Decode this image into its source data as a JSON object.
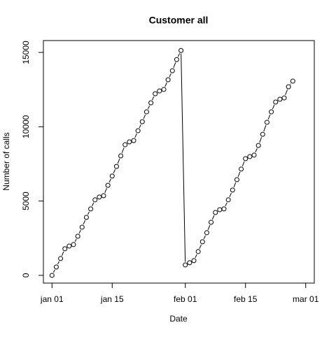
{
  "chart_data": {
    "type": "line",
    "title": "Customer all",
    "xlabel": "Date",
    "ylabel": "Number of calls",
    "x": [
      "jan 01",
      "jan 02",
      "jan 03",
      "jan 04",
      "jan 05",
      "jan 06",
      "jan 07",
      "jan 08",
      "jan 09",
      "jan 10",
      "jan 11",
      "jan 12",
      "jan 13",
      "jan 14",
      "jan 15",
      "jan 16",
      "jan 17",
      "jan 18",
      "jan 19",
      "jan 20",
      "jan 21",
      "jan 22",
      "jan 23",
      "jan 24",
      "jan 25",
      "jan 26",
      "jan 27",
      "jan 28",
      "jan 29",
      "jan 30",
      "jan 31",
      "feb 01",
      "feb 02",
      "feb 03",
      "feb 04",
      "feb 05",
      "feb 06",
      "feb 07",
      "feb 08",
      "feb 09",
      "feb 10",
      "feb 11",
      "feb 12",
      "feb 13",
      "feb 14",
      "feb 15",
      "feb 16",
      "feb 17",
      "feb 18",
      "feb 19",
      "feb 20",
      "feb 21",
      "feb 22",
      "feb 23",
      "feb 24",
      "feb 25",
      "feb 26"
    ],
    "values": [
      0,
      560,
      1130,
      1790,
      1970,
      2070,
      2630,
      3240,
      3900,
      4470,
      5080,
      5270,
      5360,
      6060,
      6680,
      7330,
      8040,
      8790,
      8980,
      9070,
      9730,
      10340,
      11000,
      11610,
      12220,
      12410,
      12510,
      13160,
      13770,
      14520,
      15130,
      700,
      850,
      990,
      1600,
      2260,
      2870,
      3570,
      4230,
      4420,
      4470,
      5080,
      5740,
      6440,
      7150,
      7850,
      7990,
      8090,
      8740,
      9490,
      10300,
      11000,
      11660,
      11850,
      11940,
      12690,
      13070
    ],
    "color": "#000000",
    "xlim": [
      "dec 30",
      "mar 03"
    ],
    "xticks": [
      "jan 01",
      "jan 15",
      "feb 01",
      "feb 15",
      "mar 01"
    ],
    "ylim": [
      -520,
      15800
    ],
    "yticks": [
      0,
      5000,
      10000,
      15000
    ]
  }
}
